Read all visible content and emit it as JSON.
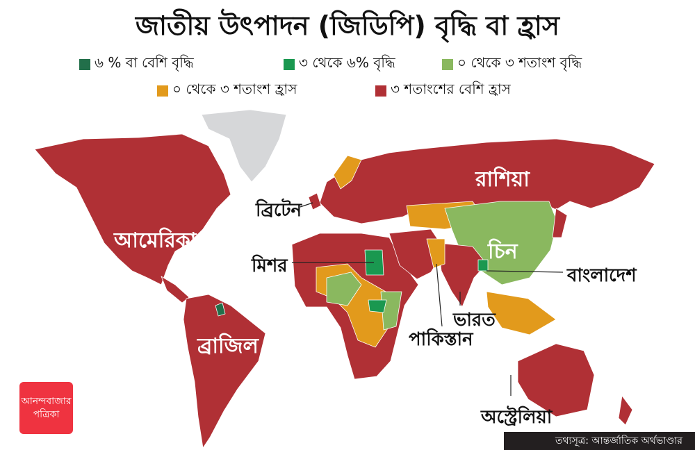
{
  "title": "জাতীয় উৎপাদন (জিডিপি) বৃদ্ধি বা হ্রাস",
  "legend": [
    {
      "label": "৬ % বা বেশি বৃদ্ধি",
      "color": "#226f4a"
    },
    {
      "label": "৩ থেকে ৬% বৃদ্ধি",
      "color": "#1a9850"
    },
    {
      "label": "০ থেকে ৩ শতাংশ বৃদ্ধি",
      "color": "#8ab85f"
    },
    {
      "label": "০  থেকে ৩ শতাংশ হ্রাস",
      "color": "#e29a1c"
    },
    {
      "label": "৩ শতাংশের বেশি হ্রাস",
      "color": "#b03035"
    }
  ],
  "no_data_color": "#d6d7d9",
  "countries": {
    "russia": "রাশিয়া",
    "usa": "আমেরিকা",
    "uk": "ব্রিটেন",
    "egypt": "মিশর",
    "china": "চিন",
    "bangladesh": "বাংলাদেশ",
    "india": "ভারত",
    "pakistan": "পাকিস্তান",
    "brazil": "ব্রাজিল",
    "australia": "অস্ট্রেলিয়া"
  },
  "logo": {
    "line1": "আনন্দবাজার",
    "line2": "পত্রিকা"
  },
  "source": "তথ্যসূত্র: আন্তর্জাতিক অর্থভাণ্ডার"
}
